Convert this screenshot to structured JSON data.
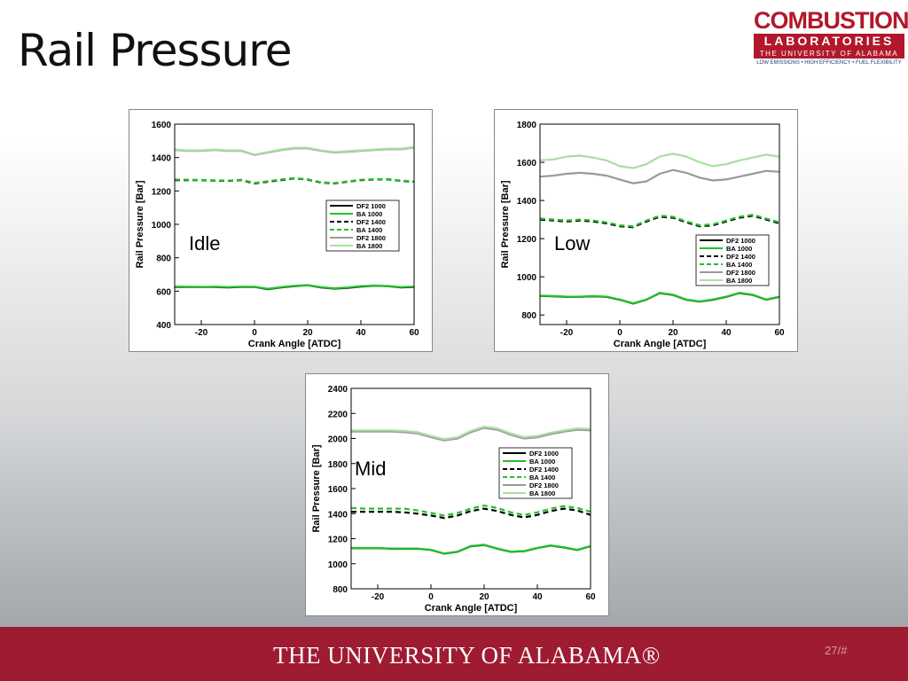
{
  "slide": {
    "title": "Rail Pressure",
    "logo": {
      "line1": "COMBUSTION",
      "line2": "LABORATORIES",
      "line3": "THE UNIVERSITY OF ALABAMA",
      "tagline": "LOW EMISSIONS • HIGH EFFICIENCY • FUEL FLEXIBILITY"
    },
    "footer": "THE UNIVERSITY OF ALABAMA®",
    "page": "27/#"
  },
  "chart_data": [
    {
      "type": "line",
      "annotation": "Idle",
      "xlabel": "Crank Angle [ATDC]",
      "ylabel": "Rail Pressure [Bar]",
      "xlim": [
        -30,
        60
      ],
      "xticks": [
        -20,
        0,
        20,
        40,
        60
      ],
      "ylim": [
        400,
        1600
      ],
      "yticks": [
        400,
        600,
        800,
        1000,
        1200,
        1400,
        1600
      ],
      "x": [
        -30,
        -25,
        -20,
        -15,
        -10,
        -5,
        0,
        5,
        10,
        15,
        20,
        25,
        30,
        35,
        40,
        45,
        50,
        55,
        60
      ],
      "series": [
        {
          "name": "DF2 1000",
          "color": "#000000",
          "dashed": false,
          "values": [
            625,
            625,
            625,
            625,
            622,
            625,
            625,
            612,
            622,
            630,
            635,
            622,
            615,
            620,
            628,
            632,
            630,
            622,
            625
          ]
        },
        {
          "name": "BA 1000",
          "color": "#22c02a",
          "dashed": false,
          "values": [
            627,
            626,
            625,
            626,
            624,
            626,
            626,
            614,
            624,
            632,
            636,
            624,
            617,
            622,
            630,
            633,
            631,
            624,
            627
          ]
        },
        {
          "name": "DF2 1400",
          "color": "#000000",
          "dashed": true,
          "values": [
            1265,
            1265,
            1265,
            1262,
            1260,
            1265,
            1245,
            1255,
            1265,
            1275,
            1268,
            1250,
            1245,
            1255,
            1265,
            1268,
            1270,
            1260,
            1255
          ]
        },
        {
          "name": "BA 1400",
          "color": "#22c02a",
          "dashed": true,
          "values": [
            1268,
            1267,
            1266,
            1264,
            1262,
            1267,
            1248,
            1258,
            1268,
            1277,
            1270,
            1252,
            1247,
            1257,
            1267,
            1270,
            1272,
            1262,
            1257
          ]
        },
        {
          "name": "DF2 1800",
          "color": "#999999",
          "dashed": false,
          "values": [
            1445,
            1440,
            1440,
            1445,
            1440,
            1440,
            1415,
            1430,
            1445,
            1455,
            1455,
            1440,
            1430,
            1435,
            1440,
            1445,
            1450,
            1450,
            1460
          ]
        },
        {
          "name": "BA 1800",
          "color": "#a8e0a0",
          "dashed": false,
          "values": [
            1448,
            1443,
            1443,
            1448,
            1443,
            1443,
            1418,
            1433,
            1448,
            1458,
            1458,
            1443,
            1433,
            1438,
            1443,
            1448,
            1453,
            1453,
            1463
          ]
        }
      ]
    },
    {
      "type": "line",
      "annotation": "Low",
      "xlabel": "Crank Angle [ATDC]",
      "ylabel": "Rail Pressure [Bar]",
      "xlim": [
        -30,
        60
      ],
      "xticks": [
        -20,
        0,
        20,
        40,
        60
      ],
      "ylim": [
        750,
        1800
      ],
      "yticks": [
        800,
        1000,
        1200,
        1400,
        1600,
        1800
      ],
      "x": [
        -30,
        -25,
        -20,
        -15,
        -10,
        -5,
        0,
        5,
        10,
        15,
        20,
        25,
        30,
        35,
        40,
        45,
        50,
        55,
        60
      ],
      "series": [
        {
          "name": "DF2 1000",
          "color": "#000000",
          "dashed": false,
          "values": [
            900,
            898,
            895,
            895,
            898,
            895,
            880,
            860,
            880,
            915,
            905,
            880,
            870,
            880,
            895,
            915,
            905,
            880,
            895
          ]
        },
        {
          "name": "BA 1000",
          "color": "#22c02a",
          "dashed": false,
          "values": [
            901,
            899,
            896,
            896,
            899,
            896,
            881,
            861,
            881,
            916,
            906,
            881,
            871,
            881,
            896,
            916,
            906,
            881,
            896
          ]
        },
        {
          "name": "DF2 1400",
          "color": "#000000",
          "dashed": true,
          "values": [
            1300,
            1295,
            1290,
            1295,
            1290,
            1280,
            1265,
            1260,
            1290,
            1315,
            1310,
            1285,
            1265,
            1270,
            1290,
            1310,
            1320,
            1300,
            1280
          ]
        },
        {
          "name": "BA 1400",
          "color": "#22c02a",
          "dashed": true,
          "values": [
            1305,
            1300,
            1295,
            1300,
            1295,
            1285,
            1270,
            1265,
            1295,
            1320,
            1315,
            1290,
            1270,
            1275,
            1295,
            1315,
            1325,
            1305,
            1285
          ]
        },
        {
          "name": "DF2 1800",
          "color": "#999999",
          "dashed": false,
          "values": [
            1525,
            1530,
            1540,
            1545,
            1540,
            1530,
            1510,
            1490,
            1500,
            1540,
            1560,
            1545,
            1520,
            1505,
            1510,
            1525,
            1540,
            1555,
            1550
          ]
        },
        {
          "name": "BA 1800",
          "color": "#a8e0a0",
          "dashed": false,
          "values": [
            1610,
            1615,
            1630,
            1635,
            1625,
            1610,
            1580,
            1570,
            1590,
            1630,
            1645,
            1630,
            1600,
            1580,
            1590,
            1610,
            1625,
            1640,
            1630
          ]
        }
      ]
    },
    {
      "type": "line",
      "annotation": "Mid",
      "xlabel": "Crank Angle [ATDC]",
      "ylabel": "Rail Pressure [Bar]",
      "xlim": [
        -30,
        60
      ],
      "xticks": [
        -20,
        0,
        20,
        40,
        60
      ],
      "ylim": [
        800,
        2400
      ],
      "yticks": [
        800,
        1000,
        1200,
        1400,
        1600,
        1800,
        2000,
        2200,
        2400
      ],
      "x": [
        -30,
        -25,
        -20,
        -15,
        -10,
        -5,
        0,
        5,
        10,
        15,
        20,
        25,
        30,
        35,
        40,
        45,
        50,
        55,
        60
      ],
      "series": [
        {
          "name": "DF2 1000",
          "color": "#000000",
          "dashed": false,
          "values": [
            1125,
            1125,
            1125,
            1120,
            1120,
            1120,
            1110,
            1080,
            1095,
            1140,
            1150,
            1120,
            1095,
            1100,
            1125,
            1145,
            1130,
            1110,
            1140
          ]
        },
        {
          "name": "BA 1000",
          "color": "#22c02a",
          "dashed": false,
          "values": [
            1126,
            1126,
            1126,
            1121,
            1121,
            1121,
            1111,
            1081,
            1096,
            1141,
            1151,
            1121,
            1096,
            1101,
            1126,
            1146,
            1131,
            1111,
            1141
          ]
        },
        {
          "name": "DF2 1400",
          "color": "#000000",
          "dashed": true,
          "values": [
            1415,
            1415,
            1415,
            1415,
            1410,
            1400,
            1385,
            1365,
            1385,
            1420,
            1440,
            1420,
            1390,
            1370,
            1390,
            1420,
            1440,
            1425,
            1390
          ]
        },
        {
          "name": "BA 1400",
          "color": "#22c02a",
          "dashed": true,
          "values": [
            1445,
            1440,
            1440,
            1440,
            1440,
            1425,
            1405,
            1385,
            1405,
            1440,
            1465,
            1445,
            1410,
            1390,
            1410,
            1440,
            1460,
            1445,
            1415
          ]
        },
        {
          "name": "DF2 1800",
          "color": "#999999",
          "dashed": false,
          "values": [
            2055,
            2055,
            2055,
            2055,
            2050,
            2040,
            2010,
            1985,
            2000,
            2050,
            2085,
            2070,
            2030,
            2000,
            2010,
            2035,
            2055,
            2070,
            2065
          ]
        },
        {
          "name": "BA 1800",
          "color": "#a8e0a0",
          "dashed": false,
          "values": [
            2065,
            2065,
            2065,
            2065,
            2060,
            2050,
            2020,
            1995,
            2010,
            2060,
            2095,
            2080,
            2040,
            2010,
            2020,
            2045,
            2065,
            2080,
            2075
          ]
        }
      ]
    }
  ]
}
